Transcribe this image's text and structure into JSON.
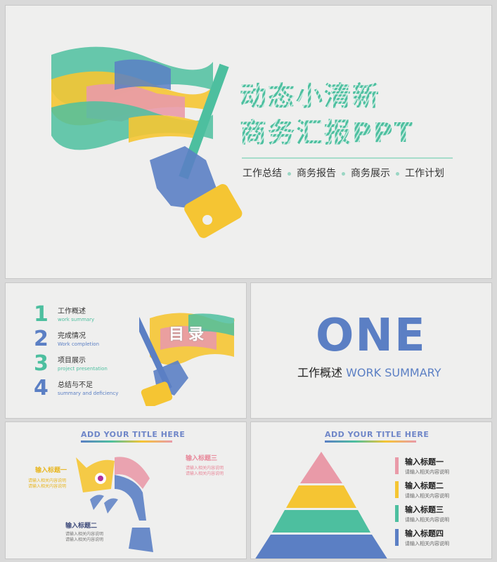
{
  "colors": {
    "green": "#4dbf9f",
    "blue": "#5b7fc4",
    "yellow": "#f5c533",
    "pink": "#e99aa8"
  },
  "cover": {
    "title_line1": "动态小清新",
    "title_line2": "商务汇报PPT",
    "tags": [
      "工作总结",
      "商务报告",
      "商务展示",
      "工作计划"
    ]
  },
  "toc": {
    "flag_text": "目录",
    "items": [
      {
        "num": "1",
        "cn": "工作概述",
        "en": "work summary",
        "color": "#4dbf9f"
      },
      {
        "num": "2",
        "cn": "完成情况",
        "en": "Work completion",
        "color": "#5b7fc4"
      },
      {
        "num": "3",
        "cn": "项目展示",
        "en": "project presentation",
        "color": "#4dbf9f"
      },
      {
        "num": "4",
        "cn": "总结与不足",
        "en": "summary and deficiency",
        "color": "#5b7fc4"
      }
    ]
  },
  "section": {
    "big": "ONE",
    "cn": "工作概述",
    "en": "WORK SUMMARY"
  },
  "fish": {
    "title": "ADD YOUR TITLE HERE",
    "labels": [
      {
        "title": "输入标题一",
        "desc": [
          "请输入相关内容说明",
          "请输入相关内容说明"
        ]
      },
      {
        "title": "输入标题二",
        "desc": [
          "请输入相关内容说明",
          "请输入相关内容说明"
        ]
      },
      {
        "title": "输入标题三",
        "desc": [
          "请输入相关内容说明",
          "请输入相关内容说明"
        ]
      }
    ]
  },
  "pyramid": {
    "title": "ADD YOUR TITLE HERE",
    "items": [
      {
        "title": "输入标题一",
        "desc": "请输入相关内容说明",
        "color": "#e99aa8"
      },
      {
        "title": "输入标题二",
        "desc": "请输入相关内容说明",
        "color": "#f5c533"
      },
      {
        "title": "输入标题三",
        "desc": "请输入相关内容说明",
        "color": "#4dbf9f"
      },
      {
        "title": "输入标题四",
        "desc": "请输入相关内容说明",
        "color": "#5b7fc4"
      }
    ]
  }
}
